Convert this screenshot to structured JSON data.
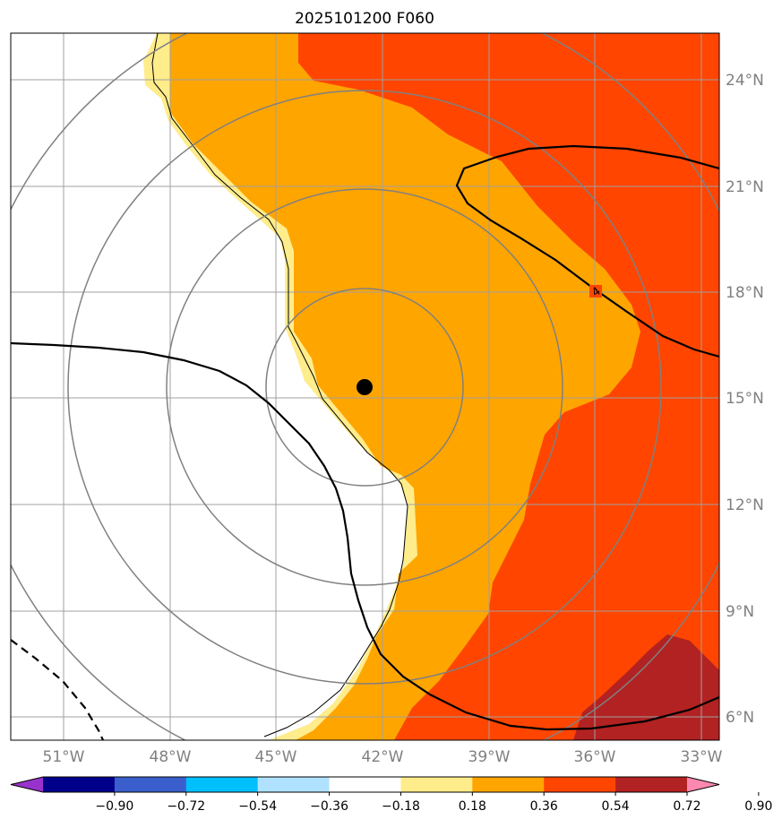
{
  "title": "2025101200 F060",
  "map": {
    "lon_range": [
      -53,
      -32.3
    ],
    "lat_range": [
      5.3,
      25.3
    ],
    "lon_ticks": [
      {
        "value": -51,
        "label": "51°W"
      },
      {
        "value": -48,
        "label": "48°W"
      },
      {
        "value": -45,
        "label": "45°W"
      },
      {
        "value": -42,
        "label": "42°W"
      },
      {
        "value": -39,
        "label": "39°W"
      },
      {
        "value": -36,
        "label": "36°W"
      },
      {
        "value": -33,
        "label": "33°W"
      }
    ],
    "lat_ticks": [
      {
        "value": 6,
        "label": "6°N"
      },
      {
        "value": 9,
        "label": "9°N"
      },
      {
        "value": 12,
        "label": "12°N"
      },
      {
        "value": 15,
        "label": "15°N"
      },
      {
        "value": 18,
        "label": "18°N"
      },
      {
        "value": 21,
        "label": "21°N"
      },
      {
        "value": 24,
        "label": "24°N"
      }
    ],
    "gridlines": true,
    "storm_center": {
      "lon": -42.6,
      "lat": 15.3
    },
    "range_rings_degrees": [
      2.8,
      5.6,
      8.4,
      11.2
    ],
    "contour_label": "4"
  },
  "colorbar": {
    "colors": [
      "#9932cc",
      "#00008b",
      "#3a5fcd",
      "#00bfff",
      "#b0e2ff",
      "#ffffff",
      "#ffec8b",
      "#ffa500",
      "#ff4500",
      "#b22222",
      "#ff88b0"
    ],
    "ticks": [
      "−0.90",
      "−0.72",
      "−0.54",
      "−0.36",
      "−0.18",
      "0.18",
      "0.36",
      "0.54",
      "0.72",
      "0.90"
    ],
    "extend": "both"
  }
}
